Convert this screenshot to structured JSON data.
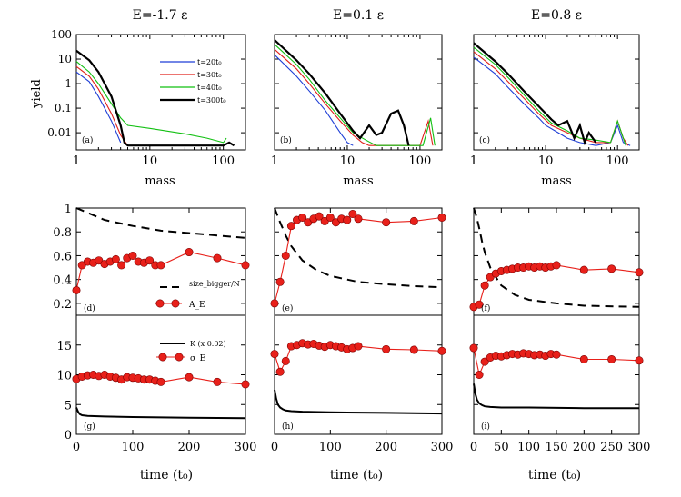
{
  "chart_data": {
    "type": "line",
    "columns": [
      "E=-1.7 ε",
      "E=0.1 ε",
      "E=0.8 ε"
    ],
    "top_row": {
      "ylabel": "yield",
      "xlabel": "mass",
      "xscale": "log",
      "yscale": "log",
      "xlim": [
        1,
        200
      ],
      "ylim": [
        0.002,
        100
      ],
      "xticks": [
        "1",
        "10",
        "100"
      ],
      "yticks": [
        "100",
        "10",
        "1",
        "0.1",
        "0.01"
      ],
      "legend": [
        {
          "label": "t=20t₀",
          "color": "#1f3fd6"
        },
        {
          "label": "t=30t₀",
          "color": "#e0201a"
        },
        {
          "label": "t=40t₀",
          "color": "#12c012"
        },
        {
          "label": "t=300t₀",
          "color": "#000000"
        }
      ],
      "panels": [
        {
          "label": "(a)",
          "series": [
            {
              "name": "t=20t₀",
              "x": [
                1,
                1.5,
                2,
                3,
                4
              ],
              "y": [
                3,
                1.2,
                0.3,
                0.03,
                0.004
              ]
            },
            {
              "name": "t=30t₀",
              "x": [
                1,
                1.5,
                2,
                3,
                4,
                5
              ],
              "y": [
                5,
                2,
                0.6,
                0.06,
                0.008,
                0.003
              ]
            },
            {
              "name": "t=40t₀",
              "x": [
                1,
                1.5,
                2,
                3,
                4,
                5,
                10,
                30,
                60,
                100,
                110
              ],
              "y": [
                8,
                3,
                1,
                0.15,
                0.04,
                0.02,
                0.015,
                0.009,
                0.006,
                0.004,
                0.006
              ]
            },
            {
              "name": "t=300t₀",
              "x": [
                1,
                1.5,
                2,
                3,
                4,
                4.5,
                5,
                20,
                50,
                100,
                120,
                140
              ],
              "y": [
                22,
                9,
                3,
                0.3,
                0.02,
                0.004,
                0.003,
                0.003,
                0.003,
                0.003,
                0.004,
                0.003
              ]
            }
          ]
        },
        {
          "label": "(b)",
          "series": [
            {
              "name": "t=20t₀",
              "x": [
                1,
                2,
                3,
                5,
                8,
                10,
                12
              ],
              "y": [
                15,
                2,
                0.5,
                0.08,
                0.01,
                0.004,
                0.003
              ]
            },
            {
              "name": "t=30t₀",
              "x": [
                1,
                2,
                3,
                5,
                8,
                12,
                16,
                20,
                100,
                130,
                150
              ],
              "y": [
                25,
                4,
                1,
                0.15,
                0.03,
                0.008,
                0.004,
                0.003,
                0.003,
                0.03,
                0.003
              ]
            },
            {
              "name": "t=40t₀",
              "x": [
                1,
                2,
                3,
                5,
                8,
                12,
                18,
                25,
                110,
                140,
                160
              ],
              "y": [
                40,
                6,
                1.5,
                0.2,
                0.04,
                0.01,
                0.005,
                0.003,
                0.003,
                0.04,
                0.003
              ]
            },
            {
              "name": "t=300t₀",
              "x": [
                1,
                2,
                3,
                5,
                8,
                12,
                15,
                20,
                25,
                30,
                40,
                50,
                60,
                70
              ],
              "y": [
                60,
                9,
                2.5,
                0.4,
                0.06,
                0.012,
                0.006,
                0.02,
                0.008,
                0.01,
                0.06,
                0.08,
                0.02,
                0.003
              ]
            }
          ]
        },
        {
          "label": "(c)",
          "series": [
            {
              "name": "t=20t₀",
              "x": [
                1,
                2,
                3,
                5,
                8,
                10,
                15,
                20,
                30,
                50,
                80,
                100,
                120,
                150
              ],
              "y": [
                12,
                2.5,
                0.7,
                0.15,
                0.04,
                0.02,
                0.01,
                0.006,
                0.004,
                0.003,
                0.004,
                0.02,
                0.004,
                0.003
              ]
            },
            {
              "name": "t=30t₀",
              "x": [
                1,
                2,
                3,
                5,
                8,
                12,
                20,
                30,
                50,
                80,
                100,
                120,
                140
              ],
              "y": [
                20,
                4,
                1.2,
                0.25,
                0.06,
                0.02,
                0.01,
                0.006,
                0.004,
                0.004,
                0.03,
                0.006,
                0.003
              ]
            },
            {
              "name": "t=40t₀",
              "x": [
                1,
                2,
                3,
                5,
                8,
                12,
                20,
                30,
                50,
                80,
                100,
                130
              ],
              "y": [
                30,
                6,
                1.8,
                0.35,
                0.08,
                0.025,
                0.012,
                0.006,
                0.005,
                0.004,
                0.03,
                0.003
              ]
            },
            {
              "name": "t=300t₀",
              "x": [
                1,
                2,
                3,
                5,
                8,
                12,
                15,
                20,
                25,
                30,
                35,
                40,
                50
              ],
              "y": [
                45,
                8,
                2.5,
                0.5,
                0.12,
                0.035,
                0.02,
                0.03,
                0.006,
                0.02,
                0.004,
                0.01,
                0.004
              ]
            }
          ]
        }
      ]
    },
    "middle_row": {
      "ylim": [
        0.1,
        1.0
      ],
      "xlim": [
        0,
        300
      ],
      "yticks": [
        "1",
        "0.8",
        "0.6",
        "0.4",
        "0.2"
      ],
      "legend": [
        {
          "label": "size_bigger/N",
          "style": "dashed"
        },
        {
          "label": "A_E",
          "style": "red circles"
        }
      ],
      "panels": [
        {
          "label": "(d)",
          "A_E": {
            "x": [
              0,
              10,
              20,
              30,
              40,
              50,
              60,
              70,
              80,
              90,
              100,
              110,
              120,
              130,
              140,
              150,
              200,
              250,
              300
            ],
            "y": [
              0.31,
              0.52,
              0.55,
              0.54,
              0.56,
              0.53,
              0.55,
              0.57,
              0.52,
              0.58,
              0.6,
              0.55,
              0.54,
              0.56,
              0.52,
              0.52,
              0.63,
              0.58,
              0.52
            ]
          },
          "size_bigger": {
            "x": [
              0,
              20,
              50,
              100,
              150,
              200,
              250,
              300
            ],
            "y": [
              1.0,
              0.96,
              0.9,
              0.85,
              0.81,
              0.79,
              0.77,
              0.75
            ]
          }
        },
        {
          "label": "(e)",
          "A_E": {
            "x": [
              0,
              10,
              20,
              30,
              40,
              50,
              60,
              70,
              80,
              90,
              100,
              110,
              120,
              130,
              140,
              150,
              200,
              250,
              300
            ],
            "y": [
              0.2,
              0.38,
              0.6,
              0.85,
              0.9,
              0.92,
              0.88,
              0.91,
              0.93,
              0.89,
              0.92,
              0.88,
              0.91,
              0.9,
              0.95,
              0.91,
              0.88,
              0.89,
              0.92
            ]
          },
          "size_bigger": {
            "x": [
              0,
              10,
              20,
              30,
              50,
              75,
              100,
              150,
              200,
              250,
              300
            ],
            "y": [
              1.0,
              0.88,
              0.77,
              0.68,
              0.56,
              0.48,
              0.43,
              0.38,
              0.36,
              0.345,
              0.335
            ]
          }
        },
        {
          "label": "(f)",
          "A_E": {
            "x": [
              0,
              10,
              20,
              30,
              40,
              50,
              60,
              70,
              80,
              90,
              100,
              110,
              120,
              130,
              140,
              150,
              200,
              250,
              300
            ],
            "y": [
              0.17,
              0.19,
              0.35,
              0.42,
              0.45,
              0.47,
              0.48,
              0.49,
              0.5,
              0.5,
              0.51,
              0.5,
              0.51,
              0.5,
              0.51,
              0.52,
              0.48,
              0.49,
              0.46
            ]
          },
          "size_bigger": {
            "x": [
              0,
              5,
              10,
              15,
              20,
              30,
              40,
              50,
              75,
              100,
              150,
              200,
              300
            ],
            "y": [
              1.0,
              0.93,
              0.83,
              0.72,
              0.63,
              0.5,
              0.42,
              0.35,
              0.27,
              0.23,
              0.2,
              0.18,
              0.17
            ]
          }
        }
      ]
    },
    "bottom_row": {
      "ylim": [
        0,
        20
      ],
      "xlim": [
        0,
        300
      ],
      "xlabel": "time (t₀)",
      "yticks": [
        "15",
        "10",
        "5",
        "0"
      ],
      "xticks_left": [
        "0",
        "100",
        "200",
        "300"
      ],
      "xticks_right": [
        "0",
        "50",
        "100",
        "150",
        "200",
        "250",
        "300"
      ],
      "legend": [
        {
          "label": "K (x 0.02)",
          "style": "solid"
        },
        {
          "label": "σ_E",
          "style": "red circles"
        }
      ],
      "panels": [
        {
          "label": "(g)",
          "sigma_E": {
            "x": [
              0,
              10,
              20,
              30,
              40,
              50,
              60,
              70,
              80,
              90,
              100,
              110,
              120,
              130,
              140,
              150,
              200,
              250,
              300
            ],
            "y": [
              9.3,
              9.7,
              9.9,
              10.0,
              9.8,
              10.0,
              9.7,
              9.5,
              9.2,
              9.6,
              9.5,
              9.4,
              9.2,
              9.2,
              9.0,
              8.8,
              9.6,
              8.8,
              8.4
            ]
          },
          "K": {
            "x": [
              0,
              3,
              6,
              10,
              20,
              50,
              100,
              200,
              300
            ],
            "y": [
              4.5,
              3.8,
              3.4,
              3.2,
              3.1,
              3.0,
              2.9,
              2.8,
              2.7
            ]
          }
        },
        {
          "label": "(h)",
          "sigma_E": {
            "x": [
              0,
              10,
              20,
              30,
              40,
              50,
              60,
              70,
              80,
              90,
              100,
              110,
              120,
              130,
              140,
              150,
              200,
              250,
              300
            ],
            "y": [
              13.5,
              10.5,
              12.3,
              14.8,
              15.0,
              15.3,
              15.1,
              15.2,
              14.9,
              14.7,
              15.0,
              14.8,
              14.6,
              14.3,
              14.5,
              14.8,
              14.3,
              14.2,
              14.0
            ]
          },
          "K": {
            "x": [
              0,
              3,
              6,
              10,
              15,
              20,
              30,
              50,
              100,
              200,
              300
            ],
            "y": [
              7.5,
              6.0,
              5.0,
              4.5,
              4.2,
              4.0,
              3.9,
              3.8,
              3.7,
              3.6,
              3.5
            ]
          }
        },
        {
          "label": "(i)",
          "sigma_E": {
            "x": [
              0,
              10,
              20,
              30,
              40,
              50,
              60,
              70,
              80,
              90,
              100,
              110,
              120,
              130,
              140,
              150,
              200,
              250,
              300
            ],
            "y": [
              14.5,
              10.0,
              12.2,
              12.9,
              13.2,
              13.1,
              13.3,
              13.5,
              13.4,
              13.6,
              13.5,
              13.3,
              13.4,
              13.2,
              13.5,
              13.4,
              12.6,
              12.6,
              12.4
            ]
          },
          "K": {
            "x": [
              0,
              3,
              6,
              10,
              15,
              20,
              30,
              50,
              100,
              200,
              300
            ],
            "y": [
              8.5,
              6.8,
              5.8,
              5.2,
              4.9,
              4.7,
              4.6,
              4.5,
              4.5,
              4.4,
              4.4
            ]
          }
        }
      ]
    }
  }
}
